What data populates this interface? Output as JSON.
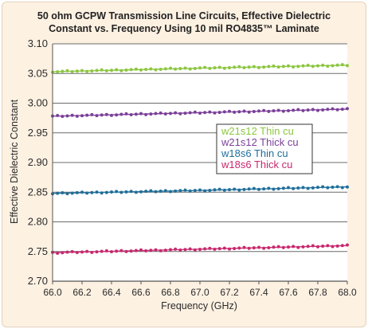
{
  "chart_data": {
    "type": "line",
    "title_line1": "50 ohm GCPW Transmission Line Circuits, Effective Dielectric",
    "title_line2": "Constant vs. Frequency Using 10 mil RO4835™ Laminate",
    "xlabel": "Frequency (GHz)",
    "ylabel": "Effective Dielectric Constant",
    "xlim": [
      66.0,
      68.0
    ],
    "ylim": [
      2.7,
      3.1
    ],
    "xticks": [
      "66.0",
      "66.2",
      "66.4",
      "66.6",
      "66.8",
      "67.0",
      "67.2",
      "67.4",
      "67.6",
      "67.8",
      "68.0"
    ],
    "yticks": [
      "3.10",
      "3.05",
      "3.00",
      "2.95",
      "2.90",
      "2.85",
      "2.80",
      "2.75",
      "2.70"
    ],
    "grid": "horizontal",
    "legend_position": "right-middle",
    "series": [
      {
        "name": "w21s12 Thin cu",
        "color": "#8cc63f",
        "x": [
          66.0,
          67.0,
          68.0
        ],
        "y": [
          3.053,
          3.059,
          3.064
        ]
      },
      {
        "name": "w21s12 Thick cu",
        "color": "#7b3f99",
        "x": [
          66.0,
          67.0,
          68.0
        ],
        "y": [
          2.978,
          2.984,
          2.99
        ]
      },
      {
        "name": "w18s6 Thin cu",
        "color": "#1f6f9a",
        "x": [
          66.0,
          67.0,
          68.0
        ],
        "y": [
          2.848,
          2.853,
          2.859
        ]
      },
      {
        "name": "w18s6 Thick cu",
        "color": "#c8286e",
        "x": [
          66.0,
          67.0,
          68.0
        ],
        "y": [
          2.748,
          2.754,
          2.76
        ]
      }
    ]
  }
}
